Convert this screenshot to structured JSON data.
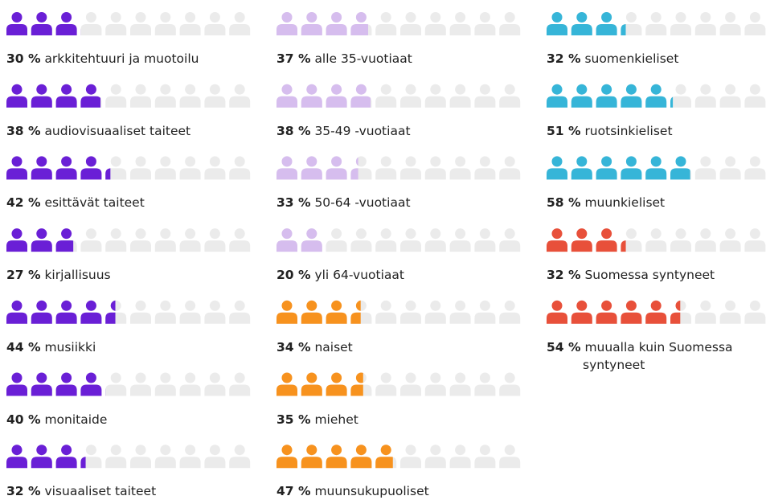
{
  "chart_data": [
    {
      "type": "pictogram",
      "color": "#6a1fd6",
      "xlim": [
        0,
        100
      ],
      "categories": [
        "arkkitehtuuri ja muotoilu",
        "audiovisuaaliset taiteet",
        "esittävät taiteet",
        "kirjallisuus",
        "musiikki",
        "monitaide",
        "visuaaliset taiteet"
      ],
      "values": [
        30,
        38,
        42,
        27,
        44,
        40,
        32
      ],
      "value_labels": [
        "30 %",
        "38 %",
        "42 %",
        "27 %",
        "44 %",
        "40 %",
        "32 %"
      ]
    },
    {
      "type": "pictogram",
      "color": "#d6bdee",
      "xlim": [
        0,
        100
      ],
      "categories": [
        "alle 35-vuotiaat",
        "35-49 -vuotiaat",
        "50-64 -vuotiaat",
        "yli 64-vuotiaat"
      ],
      "values": [
        37,
        38,
        33,
        20
      ],
      "value_labels": [
        "37 %",
        "38 %",
        "33 %",
        "20 %"
      ]
    },
    {
      "type": "pictogram",
      "color": "#f7921e",
      "xlim": [
        0,
        100
      ],
      "categories": [
        "naiset",
        "miehet",
        "muunsukupuoliset"
      ],
      "values": [
        34,
        35,
        47
      ],
      "value_labels": [
        "34 %",
        "35 %",
        "47 %"
      ]
    },
    {
      "type": "pictogram",
      "color": "#36b5d8",
      "xlim": [
        0,
        100
      ],
      "categories": [
        "suomenkieliset",
        "ruotsinkieliset",
        "muunkieliset"
      ],
      "values": [
        32,
        51,
        58
      ],
      "value_labels": [
        "32 %",
        "51 %",
        "58 %"
      ]
    },
    {
      "type": "pictogram",
      "color": "#e8503a",
      "xlim": [
        0,
        100
      ],
      "categories": [
        "Suomessa syntyneet",
        "muualla kuin Suomessa syntyneet"
      ],
      "values": [
        32,
        54
      ],
      "value_labels": [
        "32 %",
        "54 %"
      ]
    }
  ]
}
